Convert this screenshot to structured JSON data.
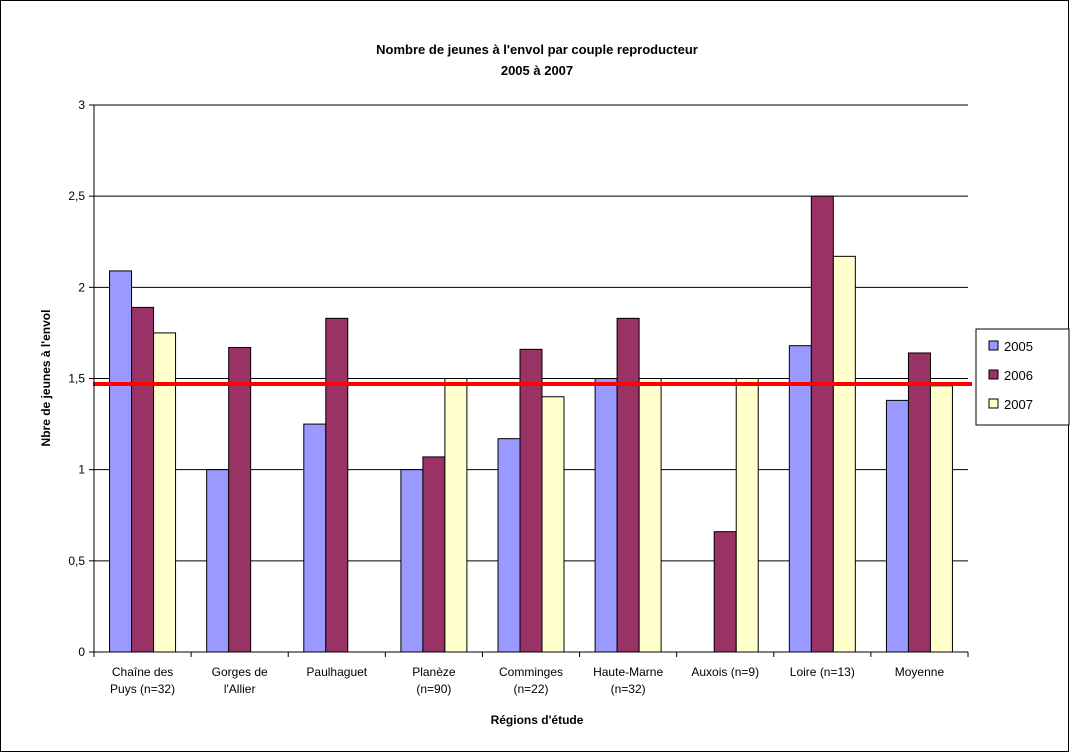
{
  "chart_data": {
    "type": "bar",
    "title": "Nombre de jeunes à l'envol par couple reproducteur",
    "subtitle": "2005 à 2007",
    "xlabel": "Régions d'étude",
    "ylabel": "Nbre de jeunes à l'envol",
    "ylim": [
      0,
      3
    ],
    "yticks": [
      "0",
      "0,5",
      "1",
      "1,5",
      "2",
      "2,5",
      "3"
    ],
    "grid": true,
    "legend_position": "right",
    "categories": [
      [
        "Chaîne des",
        "Puys (n=32)"
      ],
      [
        "Gorges de",
        "l'Allier"
      ],
      [
        "Paulhaguet"
      ],
      [
        "Planèze",
        "(n=90)"
      ],
      [
        "Comminges",
        "(n=22)"
      ],
      [
        "Haute-Marne",
        "(n=32)"
      ],
      [
        "Auxois (n=9)"
      ],
      [
        "Loire (n=13)"
      ],
      [
        "Moyenne"
      ]
    ],
    "series": [
      {
        "name": "2005",
        "color": "#9999FF",
        "values": [
          2.09,
          1.0,
          1.25,
          1.0,
          1.17,
          1.5,
          null,
          1.68,
          1.38
        ]
      },
      {
        "name": "2006",
        "color": "#993366",
        "values": [
          1.89,
          1.67,
          1.83,
          1.07,
          1.66,
          1.83,
          0.66,
          2.5,
          1.64
        ]
      },
      {
        "name": "2007",
        "color": "#FFFFCC",
        "values": [
          1.75,
          null,
          null,
          1.5,
          1.4,
          1.5,
          1.5,
          2.17,
          1.46
        ]
      }
    ],
    "reference_line": {
      "value": 1.47,
      "color": "#FF0000"
    }
  }
}
